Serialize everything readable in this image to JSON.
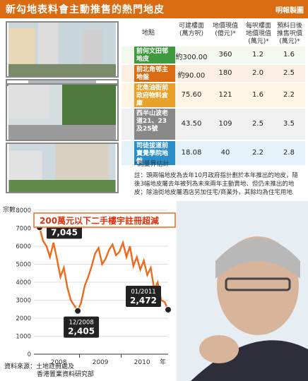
{
  "header": {
    "title": "新勾地表料會主動推售的熱門地皮",
    "credit": "明報製圖"
  },
  "table": {
    "columns": [
      "地點",
      "可建樓面(萬方呎)",
      "地價現值(億元)*",
      "每呎樓面地價現值(萬元)*",
      "預料日後推售呎價(萬元)*"
    ],
    "rows": [
      {
        "name": "前何文田邨地皮",
        "area": "約300.00",
        "value": "360",
        "per_ft": "1.2",
        "future": "1.6",
        "color": "#3f9a3f"
      },
      {
        "name": "前北角邨主地盤",
        "area": "約90.00",
        "value": "180",
        "per_ft": "2.0",
        "future": "2.5",
        "color": "#d96b12"
      },
      {
        "name": "北角油街前政府物料倉庫",
        "area": "75.60",
        "value": "121",
        "per_ft": "1.6",
        "future": "2.2",
        "color": "#e8a22a"
      },
      {
        "name": "西半山波老道21、23及25號",
        "area": "43.50",
        "value": "109",
        "per_ft": "2.5",
        "future": "3.5",
        "color": "#888888"
      },
      {
        "name": "司徒拔道前寶覺學院地盤",
        "area": "18.08",
        "value": "40",
        "per_ft": "2.2",
        "future": "2.8",
        "color": "#2a8fc9"
      }
    ],
    "footnote": "*測量界估計",
    "note": "註：頭兩幅地皮為去年10月政府指計劃於本年推出的地皮，隨後3幅地皮屬去年被列為未來兩年主動賣地、但仍未推出的地皮；除油街地皮屬酒店另加住宅/商業外，其餘均為住宅用地"
  },
  "chart_data": {
    "type": "line",
    "title": "200萬元以下二手樓宇註冊超減",
    "ylabel": "宗數",
    "ylim": [
      0,
      8000
    ],
    "yticks": [
      0,
      1000,
      2000,
      3000,
      4000,
      5000,
      6000,
      7000,
      8000
    ],
    "xlabel": "年",
    "year_labels": [
      "2008",
      "2009",
      "2010"
    ],
    "series": [
      {
        "values": [
          7045,
          6300,
          6000,
          5400,
          6200,
          5300,
          4300,
          4800,
          3700,
          3000,
          2700,
          2405,
          2900,
          3800,
          4300,
          4900,
          5600,
          5900,
          5000,
          5300,
          5800,
          6100,
          5500,
          5700,
          6200,
          5400,
          6000,
          4900,
          5400,
          4700,
          5200,
          4400,
          4800,
          3600,
          4000,
          3000,
          2900,
          2472
        ]
      }
    ],
    "annotations": [
      {
        "label": "01/2008",
        "value": "7,045",
        "index": 0
      },
      {
        "label": "12/2008",
        "value": "2,405",
        "index": 11
      },
      {
        "label": "01/2011",
        "value": "2,472",
        "index": 37
      }
    ]
  },
  "source": {
    "line1": "資料來源：土地註冊處及",
    "line2": "香港置業資料研究部"
  }
}
